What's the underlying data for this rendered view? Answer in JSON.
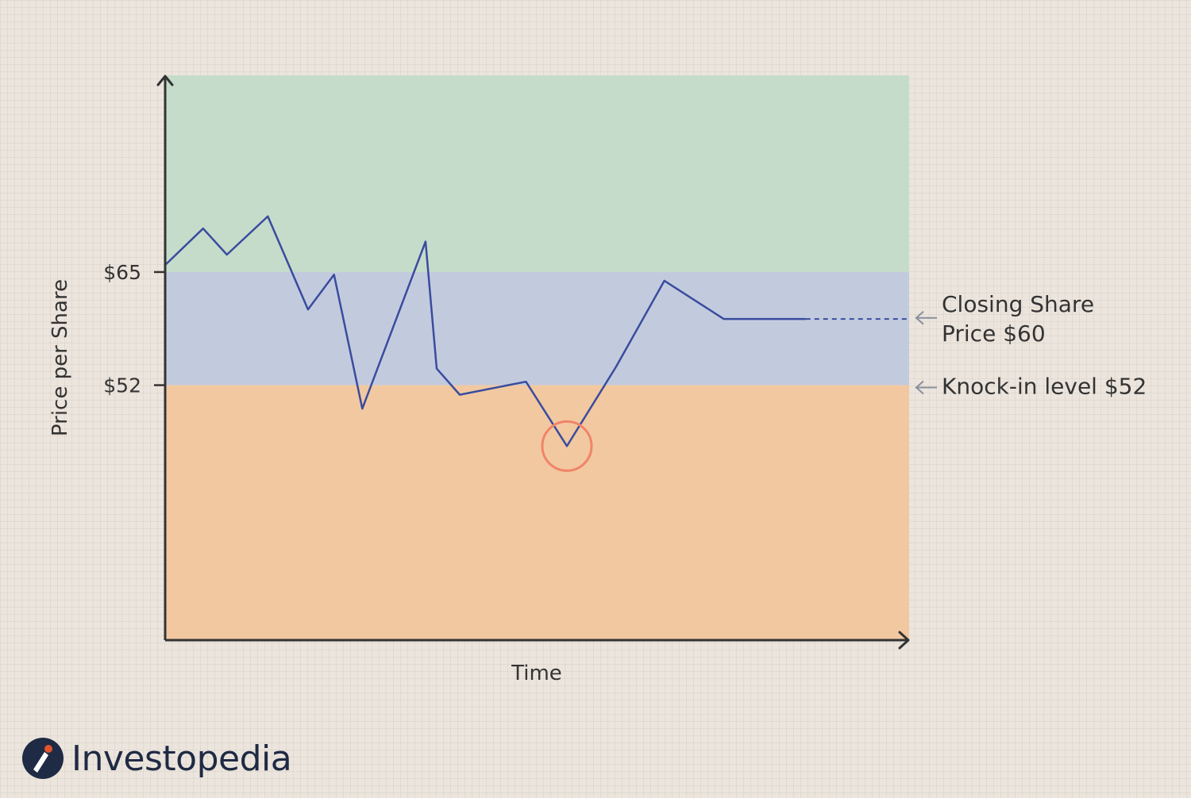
{
  "chart_data": {
    "type": "line",
    "title": "",
    "xlabel": "Time",
    "ylabel": "Price per Share",
    "y_ticks": [
      {
        "value": 65,
        "label": "$65"
      },
      {
        "value": 52,
        "label": "$52"
      }
    ],
    "bands": [
      {
        "from": 65,
        "to": 87.6,
        "color": "#c5dccb"
      },
      {
        "from": 52,
        "to": 65,
        "color": "#c2cbde"
      },
      {
        "from": 22.7,
        "to": 52,
        "color": "#f2c8a1"
      }
    ],
    "ylim": [
      22.7,
      87.6
    ],
    "xlim": [
      0,
      100
    ],
    "series": [
      {
        "color": "#3a4c9e",
        "x": [
          0,
          5.1,
          8.3,
          13.8,
          19.2,
          22.7,
          26.5,
          35,
          36.5,
          39.6,
          48.5,
          54,
          60.6,
          67.1,
          75.1,
          80,
          86.1
        ],
        "y": [
          65.8,
          70,
          67,
          71.4,
          60.7,
          64.7,
          49.3,
          68.5,
          53.9,
          50.9,
          52.4,
          45,
          54.1,
          64,
          59.6,
          59.6,
          59.6
        ]
      }
    ],
    "projection": {
      "x": [
        86.1,
        100
      ],
      "y": [
        59.6,
        59.6
      ],
      "style": "dashed"
    },
    "highlight": {
      "x": 54,
      "y": 45,
      "color": "#f08468"
    },
    "annotations": [
      {
        "lines": [
          "Closing Share",
          "Price $60"
        ],
        "y": 60
      },
      {
        "lines": [
          "Knock-in level $52"
        ],
        "y": 52
      }
    ]
  },
  "brand": {
    "name": "Investopedia",
    "icon": "investopedia-logo-icon",
    "color": "#1f2a44",
    "accent": "#e0542e"
  },
  "colors": {
    "axis": "#333333",
    "arrow": "#8a8f9c"
  }
}
